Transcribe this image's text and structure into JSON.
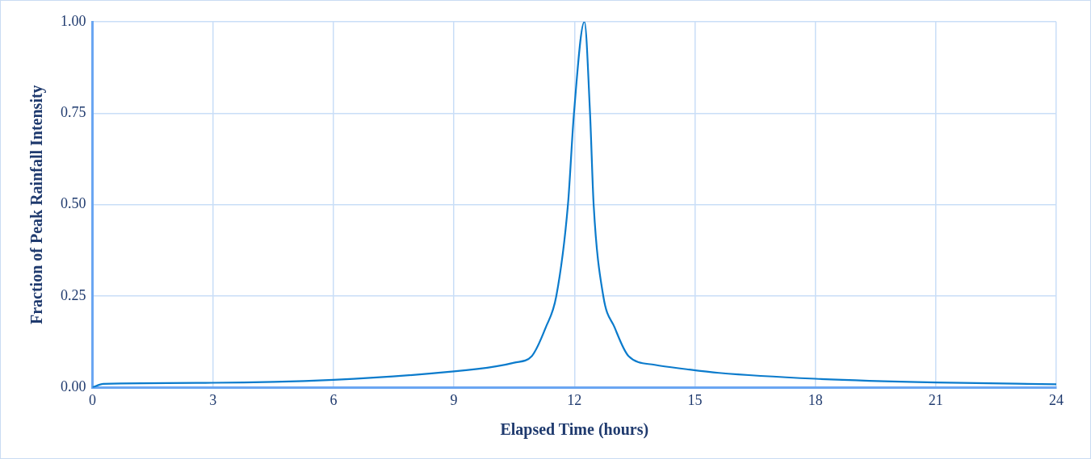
{
  "chart_data": {
    "type": "line",
    "xlabel": "Elapsed Time (hours)",
    "ylabel": "Fraction of Peak Rainfall Intensity",
    "x": [
      0,
      0.27,
      3,
      6,
      9,
      10.05,
      10.5,
      10.94,
      11.29,
      11.55,
      11.84,
      11.99,
      12.25,
      12.39,
      12.48,
      12.72,
      13.0,
      13.35,
      14.0,
      14.8,
      15.6,
      18,
      21,
      24
    ],
    "series": [
      {
        "color": "#0b7bcc",
        "values": [
          0,
          0.01,
          0.013,
          0.021,
          0.044,
          0.058,
          0.068,
          0.086,
          0.165,
          0.25,
          0.5,
          0.75,
          1.0,
          0.75,
          0.5,
          0.25,
          0.165,
          0.086,
          0.062,
          0.05,
          0.04,
          0.024,
          0.014,
          0.009
        ]
      }
    ],
    "xlim": [
      0,
      24
    ],
    "xticks": [
      0,
      3,
      6,
      9,
      12,
      15,
      18,
      21,
      24
    ],
    "ylim": [
      0,
      1
    ],
    "yticks": [
      {
        "value": 0,
        "label": "0.00"
      },
      {
        "value": 0.25,
        "label": "0.25"
      },
      {
        "value": 0.5,
        "label": "0.50"
      },
      {
        "value": 0.75,
        "label": "0.75"
      },
      {
        "value": 1,
        "label": "1.00"
      }
    ],
    "grid": true,
    "legend": false,
    "marker": "none",
    "line_style": "solid"
  }
}
